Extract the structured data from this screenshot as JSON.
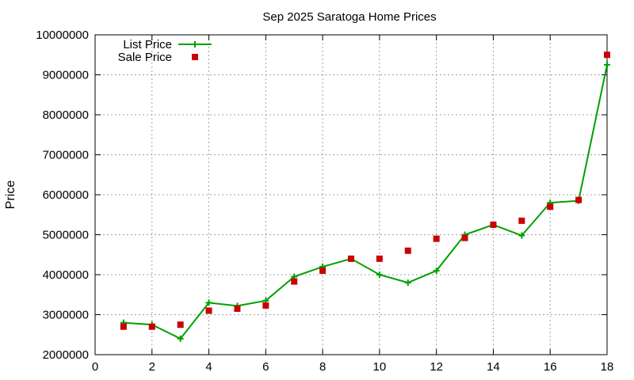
{
  "chart_data": {
    "type": "line",
    "title": "Sep 2025 Saratoga Home Prices",
    "xlabel": "",
    "ylabel": "Price",
    "xlim": [
      0,
      18
    ],
    "ylim": [
      2000000,
      10000000
    ],
    "xticks": [
      0,
      2,
      4,
      6,
      8,
      10,
      12,
      14,
      16,
      18
    ],
    "yticks": [
      2000000,
      3000000,
      4000000,
      5000000,
      6000000,
      7000000,
      8000000,
      9000000,
      10000000
    ],
    "grid": true,
    "legend_position": "top-left",
    "series": [
      {
        "name": "List Price",
        "kind": "line",
        "marker": "plus",
        "color": "#00a000",
        "x": [
          1,
          2,
          3,
          4,
          5,
          6,
          7,
          8,
          9,
          10,
          11,
          12,
          13,
          14,
          15,
          16,
          17,
          18
        ],
        "y": [
          2800000,
          2750000,
          2400000,
          3300000,
          3220000,
          3350000,
          3950000,
          4200000,
          4400000,
          4000000,
          3800000,
          4100000,
          5000000,
          5250000,
          4980000,
          5800000,
          5850000,
          9250000
        ]
      },
      {
        "name": "Sale Price",
        "kind": "scatter",
        "marker": "square",
        "color": "#cc0000",
        "x": [
          1,
          2,
          3,
          4,
          5,
          6,
          7,
          8,
          9,
          10,
          11,
          12,
          13,
          14,
          15,
          16,
          17,
          18
        ],
        "y": [
          2700000,
          2700000,
          2750000,
          3100000,
          3150000,
          3230000,
          3830000,
          4100000,
          4400000,
          4400000,
          4600000,
          4900000,
          4920000,
          5250000,
          5350000,
          5700000,
          5870000,
          9500000
        ]
      }
    ]
  }
}
